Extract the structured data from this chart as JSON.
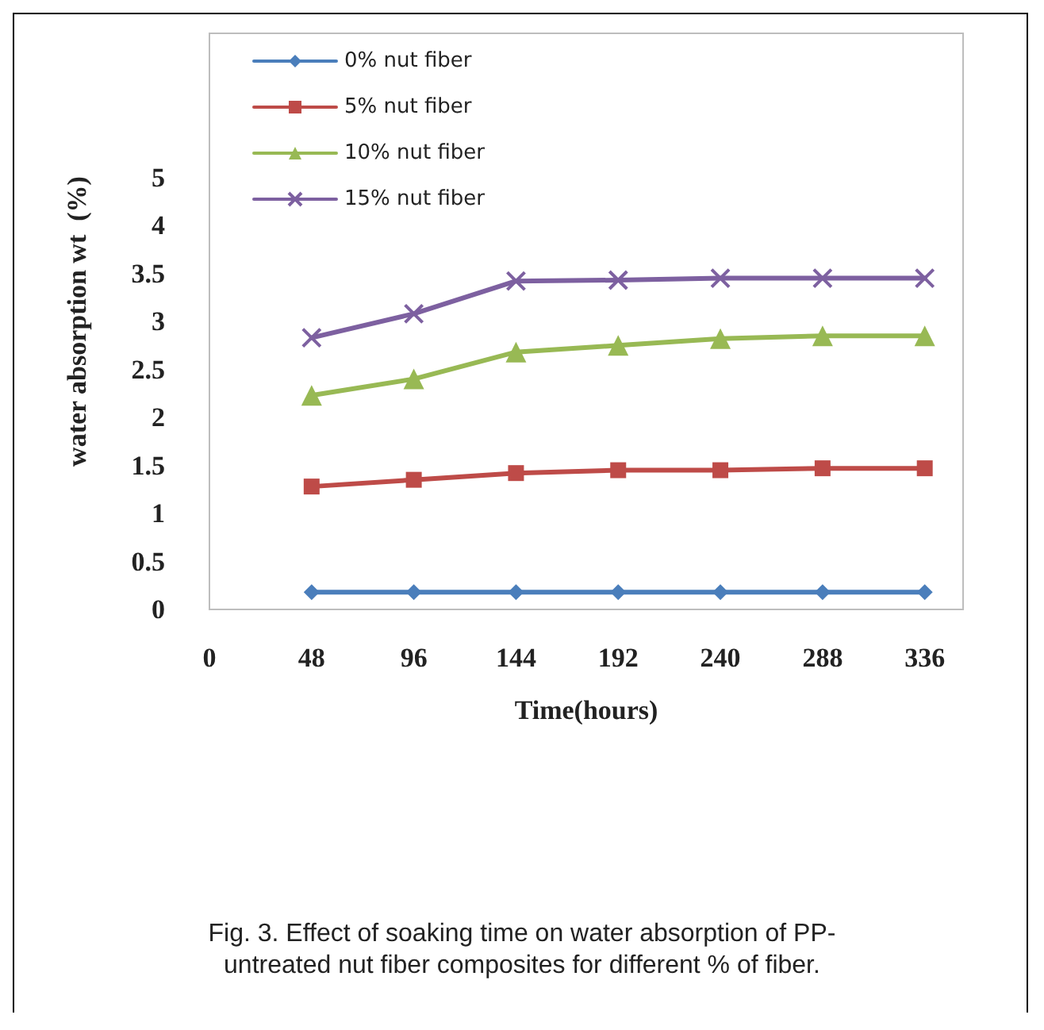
{
  "chart_data": {
    "type": "line",
    "xlabel": "Time(hours)",
    "ylabel": "water absorption wt  (%)",
    "x": [
      48,
      96,
      144,
      192,
      240,
      288,
      336
    ],
    "series": [
      {
        "name": "0% nut fiber",
        "color": "#4a7ebb",
        "marker": "diamond",
        "values": [
          0.18,
          0.18,
          0.18,
          0.18,
          0.18,
          0.18,
          0.18
        ]
      },
      {
        "name": "5% nut fiber",
        "color": "#be4b48",
        "marker": "square",
        "values": [
          1.28,
          1.35,
          1.42,
          1.45,
          1.45,
          1.47,
          1.47
        ]
      },
      {
        "name": "10% nut fiber",
        "color": "#98b954",
        "marker": "triangle",
        "values": [
          2.23,
          2.4,
          2.68,
          2.75,
          2.82,
          2.85,
          2.85
        ]
      },
      {
        "name": "15% nut fiber",
        "color": "#7d60a0",
        "marker": "cross",
        "values": [
          2.83,
          3.08,
          3.42,
          3.43,
          3.45,
          3.45,
          3.45
        ]
      }
    ],
    "xlim": [
      0,
      354
    ],
    "xticks": [
      0,
      48,
      96,
      144,
      192,
      240,
      288,
      336
    ],
    "ylim": [
      0,
      6
    ],
    "yticks": [
      0,
      0.5,
      1,
      1.5,
      2,
      2.5,
      3,
      3.5,
      4,
      {
        "value": 4.5,
        "label": "5"
      }
    ],
    "grid": false,
    "legend": "top left",
    "annotations": [
      "Fig. 3. Effect of soaking time on water absorption of PP-untreated nut fiber composites for different % of fiber."
    ]
  }
}
